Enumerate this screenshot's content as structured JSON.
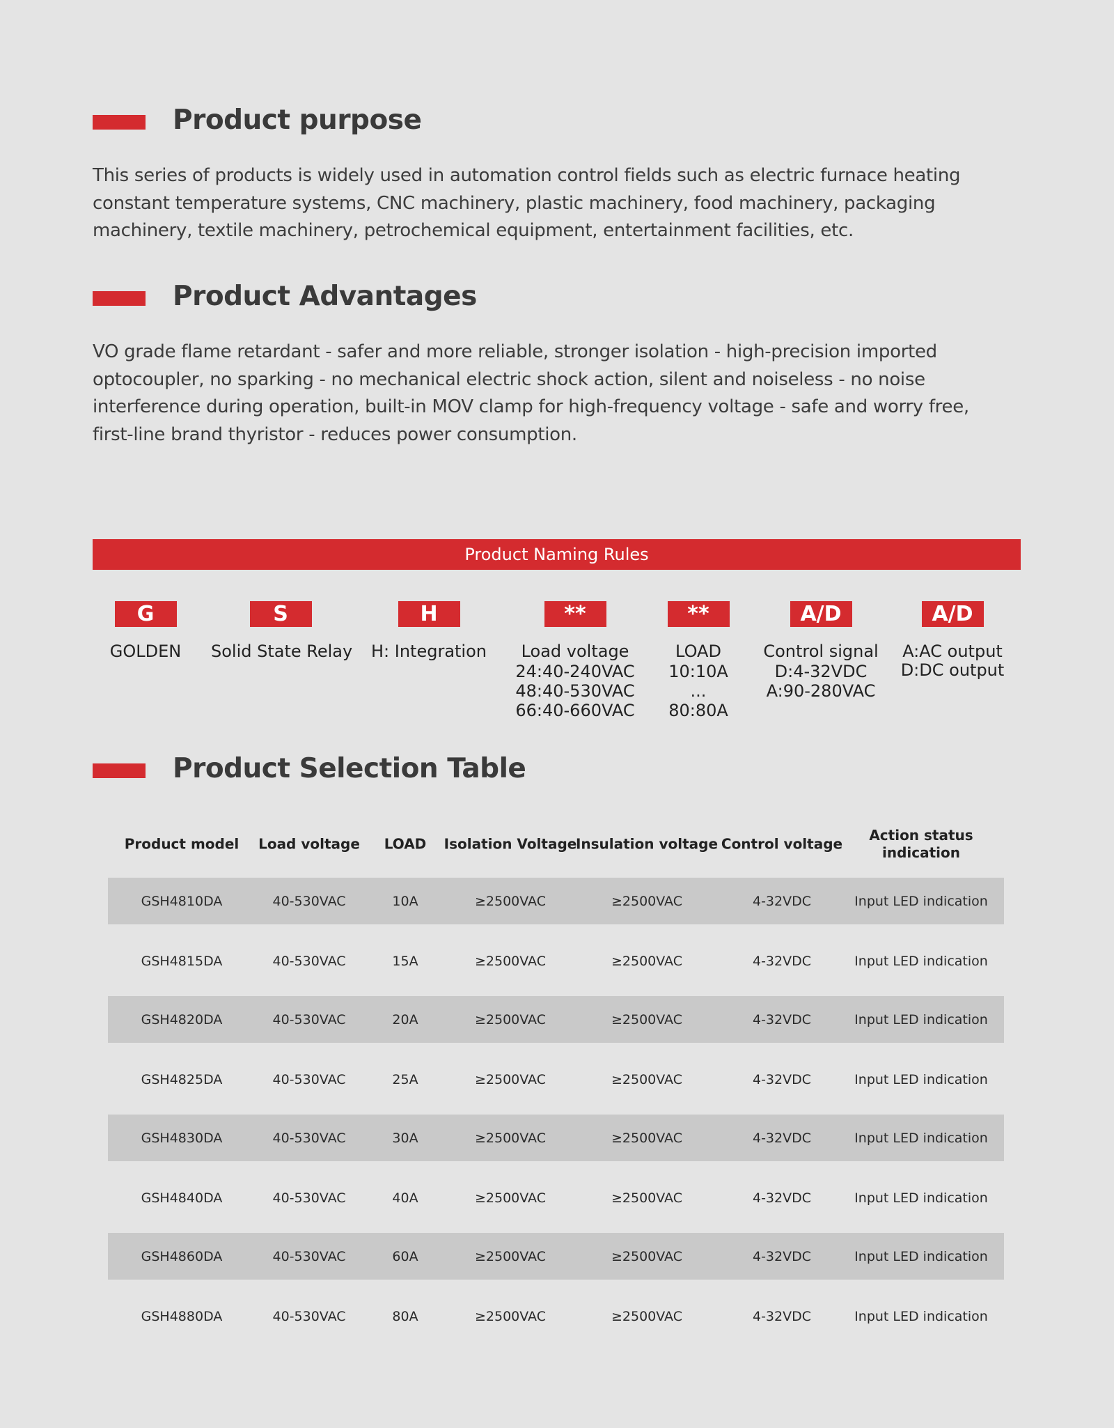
{
  "purpose": {
    "title": "Product purpose",
    "lines": [
      "This series of products is widely used in automation control fields such as electric furnace heating",
      "constant temperature systems, CNC machinery, plastic machinery, food machinery, packaging",
      "machinery, textile machinery, petrochemical equipment, entertainment facilities, etc."
    ]
  },
  "advantages": {
    "title": "Product Advantages",
    "lines": [
      "VO grade flame retardant - safer and more reliable, stronger isolation - high-precision imported",
      "optocoupler, no sparking - no mechanical electric shock action, silent and noiseless - no noise",
      "interference during operation, built-in MOV clamp for high-frequency voltage - safe and worry free,",
      "first-line brand thyristor - reduces power consumption."
    ]
  },
  "naming": {
    "banner": "Product Naming Rules",
    "items": [
      {
        "code": "G",
        "label": "GOLDEN",
        "sub": []
      },
      {
        "code": "S",
        "label": "Solid State Relay",
        "sub": []
      },
      {
        "code": "H",
        "label": "H: Integration",
        "sub": []
      },
      {
        "code": "**",
        "label": "Load voltage",
        "sub": [
          "24:40-240VAC",
          "48:40-530VAC",
          "66:40-660VAC"
        ]
      },
      {
        "code": "**",
        "label": "LOAD",
        "sub": [
          "10:10A",
          "...",
          "80:80A"
        ]
      },
      {
        "code": "A/D",
        "label": "Control signal",
        "sub": [
          "D:4-32VDC",
          "A:90-280VAC"
        ]
      },
      {
        "code": "A/D",
        "label": "A:AC output",
        "sub": [
          "D:DC output"
        ]
      }
    ]
  },
  "selection": {
    "title": "Product Selection Table",
    "headers": [
      "Product model",
      "Load voltage",
      "LOAD",
      "Isolation Voltage",
      "Insulation voltage",
      "Control voltage",
      "Action status\nindication"
    ],
    "rows": [
      [
        "GSH4810DA",
        "40-530VAC",
        "10A",
        "≥2500VAC",
        "≥2500VAC",
        "4-32VDC",
        "Input LED indication"
      ],
      [
        "GSH4815DA",
        "40-530VAC",
        "15A",
        "≥2500VAC",
        "≥2500VAC",
        "4-32VDC",
        "Input LED indication"
      ],
      [
        "GSH4820DA",
        "40-530VAC",
        "20A",
        "≥2500VAC",
        "≥2500VAC",
        "4-32VDC",
        "Input LED indication"
      ],
      [
        "GSH4825DA",
        "40-530VAC",
        "25A",
        "≥2500VAC",
        "≥2500VAC",
        "4-32VDC",
        "Input LED indication"
      ],
      [
        "GSH4830DA",
        "40-530VAC",
        "30A",
        "≥2500VAC",
        "≥2500VAC",
        "4-32VDC",
        "Input LED indication"
      ],
      [
        "GSH4840DA",
        "40-530VAC",
        "40A",
        "≥2500VAC",
        "≥2500VAC",
        "4-32VDC",
        "Input LED indication"
      ],
      [
        "GSH4860DA",
        "40-530VAC",
        "60A",
        "≥2500VAC",
        "≥2500VAC",
        "4-32VDC",
        "Input LED indication"
      ],
      [
        "GSH4880DA",
        "40-530VAC",
        "80A",
        "≥2500VAC",
        "≥2500VAC",
        "4-32VDC",
        "Input LED indication"
      ]
    ]
  },
  "colors": {
    "accent": "#d42b2f",
    "background": "#e4e4e4",
    "row_shade": "#c9c9c9"
  }
}
